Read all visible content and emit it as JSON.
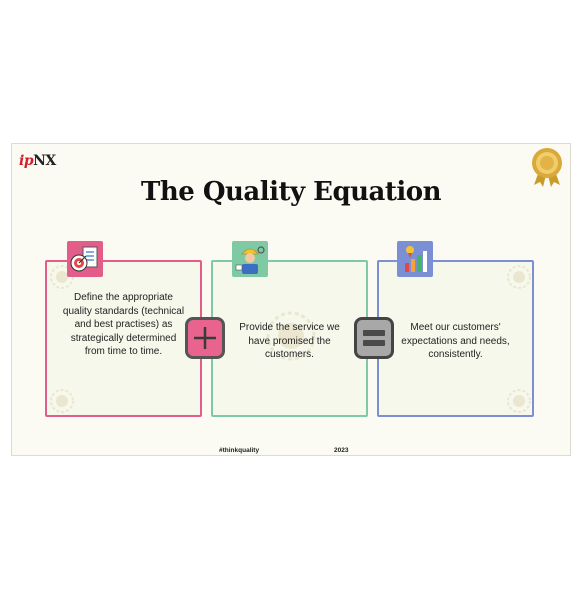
{
  "brand": {
    "logo_ip": "ip",
    "logo_nx": "NX"
  },
  "slide": {
    "title": "The Quality Equation",
    "cards": [
      {
        "text": "Define the appropriate quality standards (technical and best practises) as strategically determined from time to time.",
        "accent": "#e35d8a",
        "icon": "target-document-icon"
      },
      {
        "text": "Provide the service we have promised the customers.",
        "accent": "#7fc9a4",
        "icon": "engineer-worker-icon"
      },
      {
        "text": "Meet our customers' expectations and needs, consistently.",
        "accent": "#7b8fd4",
        "icon": "growth-chart-icon"
      }
    ],
    "operators": {
      "plus": "plus-icon",
      "equals": "equals-icon"
    },
    "footer": {
      "hashtag": "#thinkquality",
      "year": "2023"
    }
  }
}
